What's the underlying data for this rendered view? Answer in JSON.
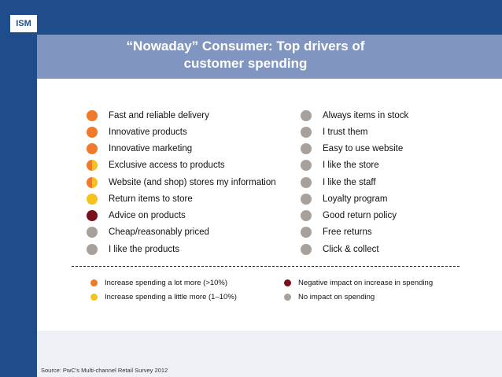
{
  "logo": {
    "text": "ISM"
  },
  "title": {
    "line1": "“Nowaday” Consumer: Top drivers of",
    "line2": "customer spending"
  },
  "colors": {
    "orange": "#f07a2a",
    "yellow": "#f6c21e",
    "maroon": "#7a0f1e",
    "grey": "#a8a09a"
  },
  "left_items": [
    {
      "label": "Fast and reliable delivery",
      "impact": "orange"
    },
    {
      "label": "Innovative products",
      "impact": "orange"
    },
    {
      "label": "Innovative marketing",
      "impact": "orange"
    },
    {
      "label": "Exclusive access to products",
      "impact": "half"
    },
    {
      "label": "Website (and shop) stores my information",
      "impact": "half"
    },
    {
      "label": "Return items to store",
      "impact": "yellow"
    },
    {
      "label": "Advice on products",
      "impact": "maroon"
    },
    {
      "label": "Cheap/reasonably priced",
      "impact": "grey"
    },
    {
      "label": "I like the products",
      "impact": "grey"
    }
  ],
  "right_items": [
    {
      "label": "Always items in stock",
      "impact": "grey"
    },
    {
      "label": "I trust them",
      "impact": "grey"
    },
    {
      "label": "Easy to use website",
      "impact": "grey"
    },
    {
      "label": "I like the store",
      "impact": "grey"
    },
    {
      "label": "I like the staff",
      "impact": "grey"
    },
    {
      "label": "Loyalty program",
      "impact": "grey"
    },
    {
      "label": "Good return policy",
      "impact": "grey"
    },
    {
      "label": "Free returns",
      "impact": "grey"
    },
    {
      "label": "Click & collect",
      "impact": "grey"
    }
  ],
  "legend": {
    "a_lot": "Increase spending a lot more (>10%)",
    "a_little": "Increase spending a little more (1–10%)",
    "negative": "Negative impact on increase in spending",
    "none": "No impact on spending"
  },
  "source": "Source: PwC’s Multi-channel Retail Survey 2012"
}
